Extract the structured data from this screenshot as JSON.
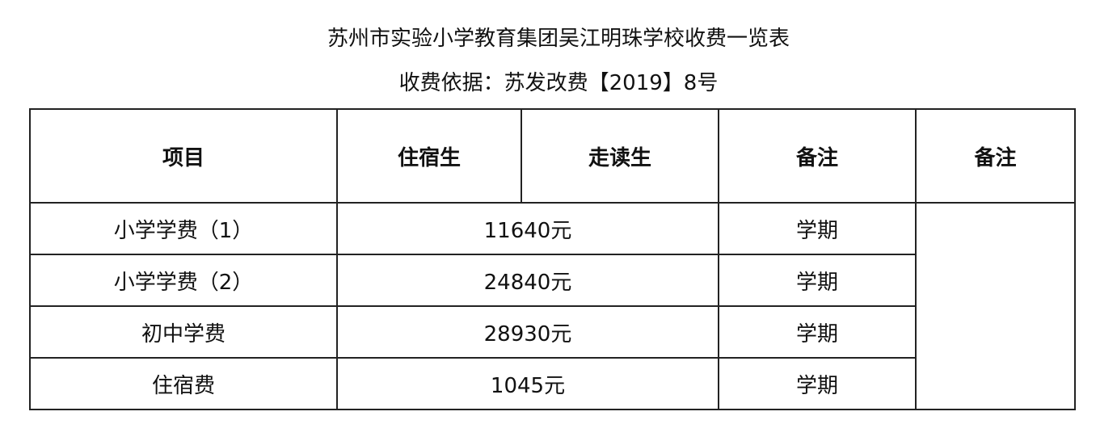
{
  "title": "苏州市实验小学教育集团吴江明珠学校收费一览表",
  "subtitle": "收费依据：苏发改费【2019】8号",
  "table": {
    "headers": [
      "项目",
      "住宿生",
      "走读生",
      "备注",
      "备注"
    ],
    "rows": [
      {
        "item": "小学学费（1）",
        "fee": "11640元",
        "note": "学期"
      },
      {
        "item": "小学学费（2）",
        "fee": "24840元",
        "note": "学期"
      },
      {
        "item": "初中学费",
        "fee": "28930元",
        "note": "学期"
      },
      {
        "item": "住宿费",
        "fee": "1045元",
        "note": "学期"
      }
    ]
  }
}
